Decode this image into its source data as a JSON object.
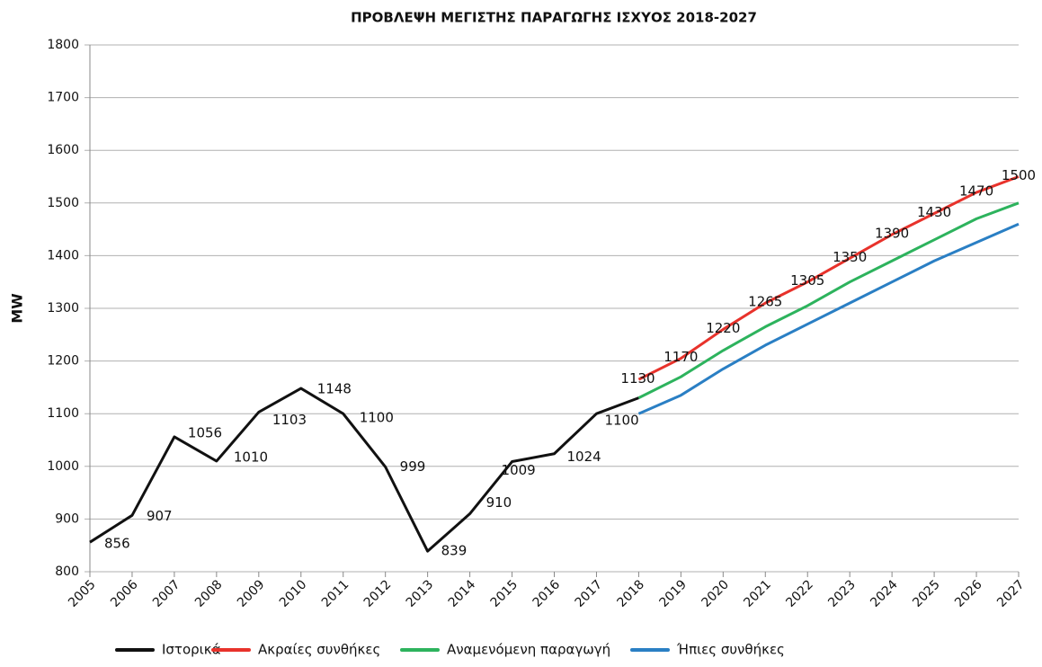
{
  "chart_data": {
    "type": "line",
    "title": "ΠΡΟΒΛΕΨΗ ΜΕΓΙΣΤΗΣ ΠΑΡΑΓΩΓΗΣ ΙΣΧΥΟΣ 2018-2027",
    "y_label": "MW",
    "x": [
      2005,
      2006,
      2007,
      2008,
      2009,
      2010,
      2011,
      2012,
      2013,
      2014,
      2015,
      2016,
      2017,
      2018,
      2019,
      2020,
      2021,
      2022,
      2023,
      2024,
      2025,
      2026,
      2027
    ],
    "xlim": [
      2005,
      2027
    ],
    "xticks": [
      2005,
      2006,
      2007,
      2008,
      2009,
      2010,
      2011,
      2012,
      2013,
      2014,
      2015,
      2016,
      2017,
      2018,
      2019,
      2020,
      2021,
      2022,
      2023,
      2024,
      2025,
      2026,
      2027
    ],
    "ylim": [
      800,
      1800
    ],
    "yticks": [
      800,
      900,
      1000,
      1100,
      1200,
      1300,
      1400,
      1500,
      1600,
      1700,
      1800
    ],
    "grid": true,
    "legend": "bottom",
    "series": [
      {
        "name": "Ιστορικά",
        "color": "#111111",
        "values": [
          856,
          907,
          1056,
          1010,
          1103,
          1148,
          1100,
          999,
          839,
          910,
          1009,
          1024,
          1100,
          1130,
          null,
          null,
          null,
          null,
          null,
          null,
          null,
          null,
          null
        ]
      },
      {
        "name": "Ακραίες συνθήκες",
        "color": "#e8322b",
        "values": [
          null,
          null,
          null,
          null,
          null,
          null,
          null,
          null,
          null,
          null,
          null,
          null,
          null,
          1165,
          1205,
          1260,
          1310,
          1350,
          1395,
          1440,
          1480,
          1520,
          1550
        ]
      },
      {
        "name": "Αναμενόμενη παραγωγή",
        "color": "#2db35d",
        "values": [
          null,
          null,
          null,
          null,
          null,
          null,
          null,
          null,
          null,
          null,
          null,
          null,
          null,
          1130,
          1170,
          1220,
          1265,
          1305,
          1350,
          1390,
          1430,
          1470,
          1500
        ]
      },
      {
        "name": "Ήπιες συνθήκες",
        "color": "#2a7fc4",
        "values": [
          null,
          null,
          null,
          null,
          null,
          null,
          null,
          null,
          null,
          null,
          null,
          null,
          null,
          1100,
          1135,
          1185,
          1230,
          1270,
          1310,
          1350,
          1390,
          1425,
          1460
        ]
      }
    ]
  }
}
